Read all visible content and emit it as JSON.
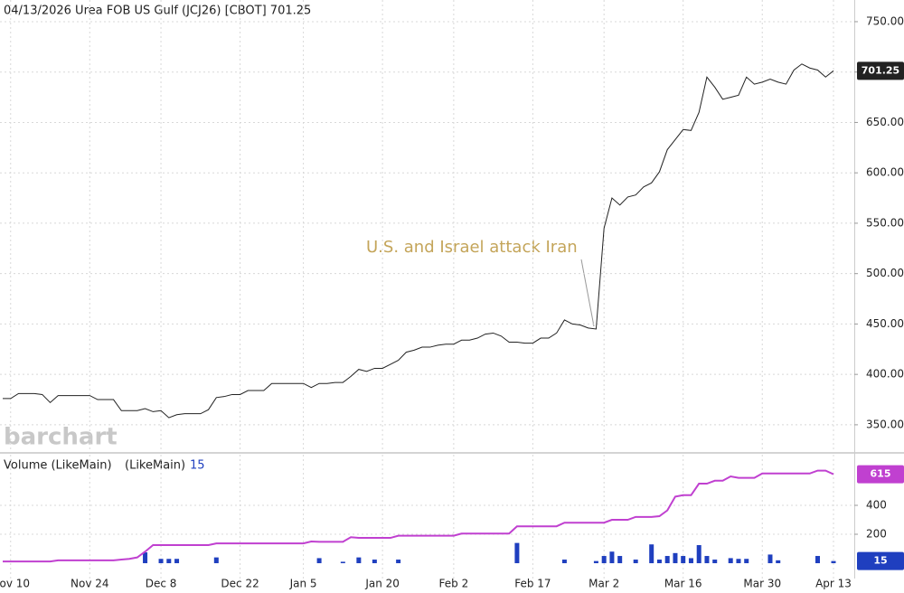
{
  "chart_data": [
    {
      "type": "line",
      "title": "04/13/2026 Urea FOB US Gulf (JCJ26) [CBOT] 701.25",
      "annotation": "U.S. and Israel attack Iran",
      "watermark": "barchart",
      "grid": true,
      "categories": [
        null,
        "Nov 10",
        null,
        null,
        null,
        null,
        null,
        null,
        null,
        null,
        null,
        "Nov 24",
        null,
        null,
        null,
        null,
        null,
        null,
        null,
        null,
        "Dec 8",
        null,
        null,
        null,
        null,
        null,
        null,
        null,
        null,
        null,
        "Dec 22",
        null,
        null,
        null,
        null,
        null,
        null,
        null,
        "Jan 5",
        null,
        null,
        null,
        null,
        null,
        null,
        null,
        null,
        null,
        "Jan 20",
        null,
        null,
        null,
        null,
        null,
        null,
        null,
        null,
        "Feb 2",
        null,
        null,
        null,
        null,
        null,
        null,
        null,
        null,
        null,
        "Feb 17",
        null,
        null,
        null,
        null,
        null,
        null,
        null,
        null,
        "Mar 2",
        null,
        null,
        null,
        null,
        null,
        null,
        null,
        null,
        null,
        "Mar 16",
        null,
        null,
        null,
        null,
        null,
        null,
        null,
        null,
        null,
        "Mar 30",
        null,
        null,
        null,
        null,
        null,
        null,
        null,
        null,
        "Apr 13"
      ],
      "series": [
        {
          "color": "#222222",
          "values": [
            376,
            376,
            381,
            381,
            381,
            380,
            372,
            379,
            379,
            379,
            379,
            379,
            375,
            375,
            375,
            364,
            364,
            364,
            366,
            363,
            364,
            357,
            360,
            361,
            361,
            361,
            365,
            377,
            378,
            380,
            380,
            384,
            384,
            384,
            391,
            391,
            391,
            391,
            391,
            387,
            391,
            391,
            392,
            392,
            398,
            405,
            403,
            406,
            406,
            410,
            414,
            422,
            424,
            427,
            427,
            429,
            430,
            430,
            434,
            434,
            436,
            440,
            441,
            438,
            432,
            432,
            431,
            431,
            436,
            436,
            441,
            454,
            450,
            449,
            446,
            445,
            545,
            575,
            568,
            576,
            578,
            586,
            590,
            601,
            623,
            633,
            643,
            642,
            660,
            695,
            685,
            673,
            675,
            677,
            695,
            688,
            690,
            693,
            690,
            688,
            702,
            708,
            704,
            702,
            695,
            701.25
          ]
        }
      ],
      "ylim": [
        323,
        771.5
      ],
      "yticks": [
        {
          "value": 350,
          "label": "350.00"
        },
        {
          "value": 400,
          "label": "400.00"
        },
        {
          "value": 450,
          "label": "450.00"
        },
        {
          "value": 500,
          "label": "500.00"
        },
        {
          "value": 550,
          "label": "550.00"
        },
        {
          "value": 600,
          "label": "600.00"
        },
        {
          "value": 650,
          "label": "650.00"
        },
        {
          "value": 700,
          "label": "700.00"
        },
        {
          "value": 750,
          "label": "750.00"
        }
      ]
    },
    {
      "type": "bar",
      "title": "Volume (LikeMain)",
      "grid": true,
      "series": [
        {
          "name": "(LikeMain)",
          "type": "bar",
          "color": "#1f3fbf",
          "values": [
            0,
            0,
            0,
            0,
            0,
            0,
            0,
            0,
            0,
            0,
            0,
            0,
            0,
            0,
            0,
            0,
            0,
            0,
            75,
            0,
            30,
            30,
            30,
            0,
            0,
            0,
            0,
            40,
            0,
            0,
            0,
            0,
            0,
            0,
            0,
            0,
            0,
            0,
            0,
            0,
            35,
            0,
            0,
            10,
            0,
            40,
            0,
            25,
            0,
            0,
            25,
            0,
            0,
            0,
            0,
            0,
            0,
            0,
            0,
            0,
            0,
            0,
            0,
            0,
            0,
            140,
            0,
            0,
            0,
            0,
            0,
            25,
            0,
            0,
            0,
            15,
            50,
            80,
            50,
            0,
            25,
            0,
            130,
            25,
            50,
            70,
            50,
            35,
            125,
            50,
            25,
            0,
            35,
            30,
            30,
            0,
            0,
            60,
            20,
            0,
            0,
            0,
            0,
            50,
            0,
            15
          ]
        },
        {
          "type": "line",
          "color": "#c040d0",
          "values": [
            12,
            12,
            12,
            12,
            12,
            12,
            12,
            20,
            20,
            20,
            20,
            20,
            20,
            20,
            20,
            25,
            30,
            40,
            80,
            125,
            125,
            125,
            125,
            125,
            125,
            125,
            125,
            137,
            137,
            137,
            137,
            137,
            137,
            137,
            137,
            137,
            137,
            137,
            137,
            150,
            148,
            148,
            148,
            148,
            180,
            175,
            175,
            175,
            175,
            175,
            190,
            190,
            190,
            190,
            190,
            190,
            190,
            190,
            205,
            205,
            205,
            205,
            205,
            205,
            205,
            255,
            255,
            255,
            255,
            255,
            255,
            280,
            280,
            280,
            280,
            280,
            280,
            300,
            300,
            300,
            320,
            320,
            320,
            325,
            365,
            460,
            470,
            470,
            550,
            550,
            570,
            570,
            600,
            590,
            590,
            590,
            620,
            620,
            620,
            620,
            620,
            620,
            620,
            640,
            640,
            615
          ]
        }
      ],
      "ylim": [
        -106,
        750
      ],
      "yticks": [
        200,
        400
      ]
    }
  ]
}
